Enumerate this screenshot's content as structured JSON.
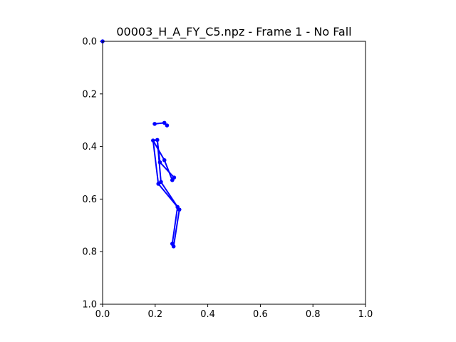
{
  "chart_data": {
    "type": "line",
    "title": "00003_H_A_FY_C5.npz - Frame 1 - No Fall",
    "xlabel": "",
    "ylabel": "",
    "xlim": [
      0.0,
      1.0
    ],
    "ylim": [
      0.0,
      1.0
    ],
    "y_inverted": true,
    "grid": false,
    "x_ticks": [
      "0.0",
      "0.2",
      "0.4",
      "0.6",
      "0.8",
      "1.0"
    ],
    "y_ticks": [
      "0.0",
      "0.2",
      "0.4",
      "0.6",
      "0.8",
      "1.0"
    ],
    "series_color": "#0000ff",
    "points": [
      {
        "x": 0.0,
        "y": 0.0
      },
      {
        "x": 0.198,
        "y": 0.314
      },
      {
        "x": 0.235,
        "y": 0.31
      },
      {
        "x": 0.245,
        "y": 0.32
      },
      {
        "x": 0.192,
        "y": 0.377
      },
      {
        "x": 0.208,
        "y": 0.375
      },
      {
        "x": 0.235,
        "y": 0.452
      },
      {
        "x": 0.218,
        "y": 0.46
      },
      {
        "x": 0.272,
        "y": 0.518
      },
      {
        "x": 0.265,
        "y": 0.528
      },
      {
        "x": 0.212,
        "y": 0.542
      },
      {
        "x": 0.222,
        "y": 0.535
      },
      {
        "x": 0.285,
        "y": 0.63
      },
      {
        "x": 0.292,
        "y": 0.64
      },
      {
        "x": 0.265,
        "y": 0.77
      },
      {
        "x": 0.27,
        "y": 0.78
      }
    ],
    "segments": [
      [
        1,
        2
      ],
      [
        2,
        3
      ],
      [
        4,
        5
      ],
      [
        4,
        10
      ],
      [
        5,
        11
      ],
      [
        4,
        6
      ],
      [
        6,
        9
      ],
      [
        5,
        7
      ],
      [
        7,
        8
      ],
      [
        10,
        12
      ],
      [
        11,
        13
      ],
      [
        12,
        14
      ],
      [
        13,
        15
      ]
    ]
  }
}
